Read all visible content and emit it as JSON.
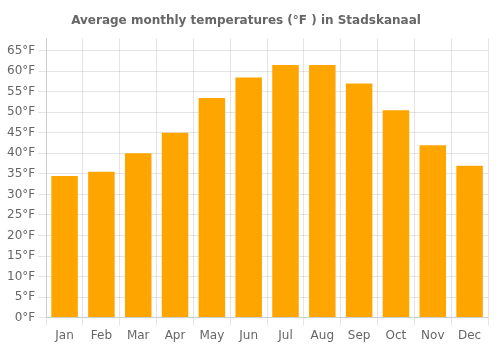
{
  "chart_data": {
    "type": "bar",
    "title": "Average monthly temperatures (°F ) in Stadskanaal",
    "categories": [
      "Jan",
      "Feb",
      "Mar",
      "Apr",
      "May",
      "Jun",
      "Jul",
      "Aug",
      "Sep",
      "Oct",
      "Nov",
      "Dec"
    ],
    "values": [
      34.5,
      35.5,
      40.0,
      45.0,
      53.5,
      58.5,
      61.5,
      61.5,
      57.0,
      50.5,
      42.0,
      37.0
    ],
    "color": "#FFA500",
    "ylim": [
      0,
      68
    ],
    "yticks": [
      {
        "value": 0,
        "label": "0°F"
      },
      {
        "value": 5,
        "label": "5°F"
      },
      {
        "value": 10,
        "label": "10°F"
      },
      {
        "value": 15,
        "label": "15°F"
      },
      {
        "value": 20,
        "label": "20°F"
      },
      {
        "value": 25,
        "label": "25°F"
      },
      {
        "value": 30,
        "label": "30°F"
      },
      {
        "value": 35,
        "label": "35°F"
      },
      {
        "value": 40,
        "label": "40°F"
      },
      {
        "value": 45,
        "label": "45°F"
      },
      {
        "value": 50,
        "label": "50°F"
      },
      {
        "value": 55,
        "label": "55°F"
      },
      {
        "value": 60,
        "label": "60°F"
      },
      {
        "value": 65,
        "label": "65°F"
      }
    ],
    "grid": true
  }
}
